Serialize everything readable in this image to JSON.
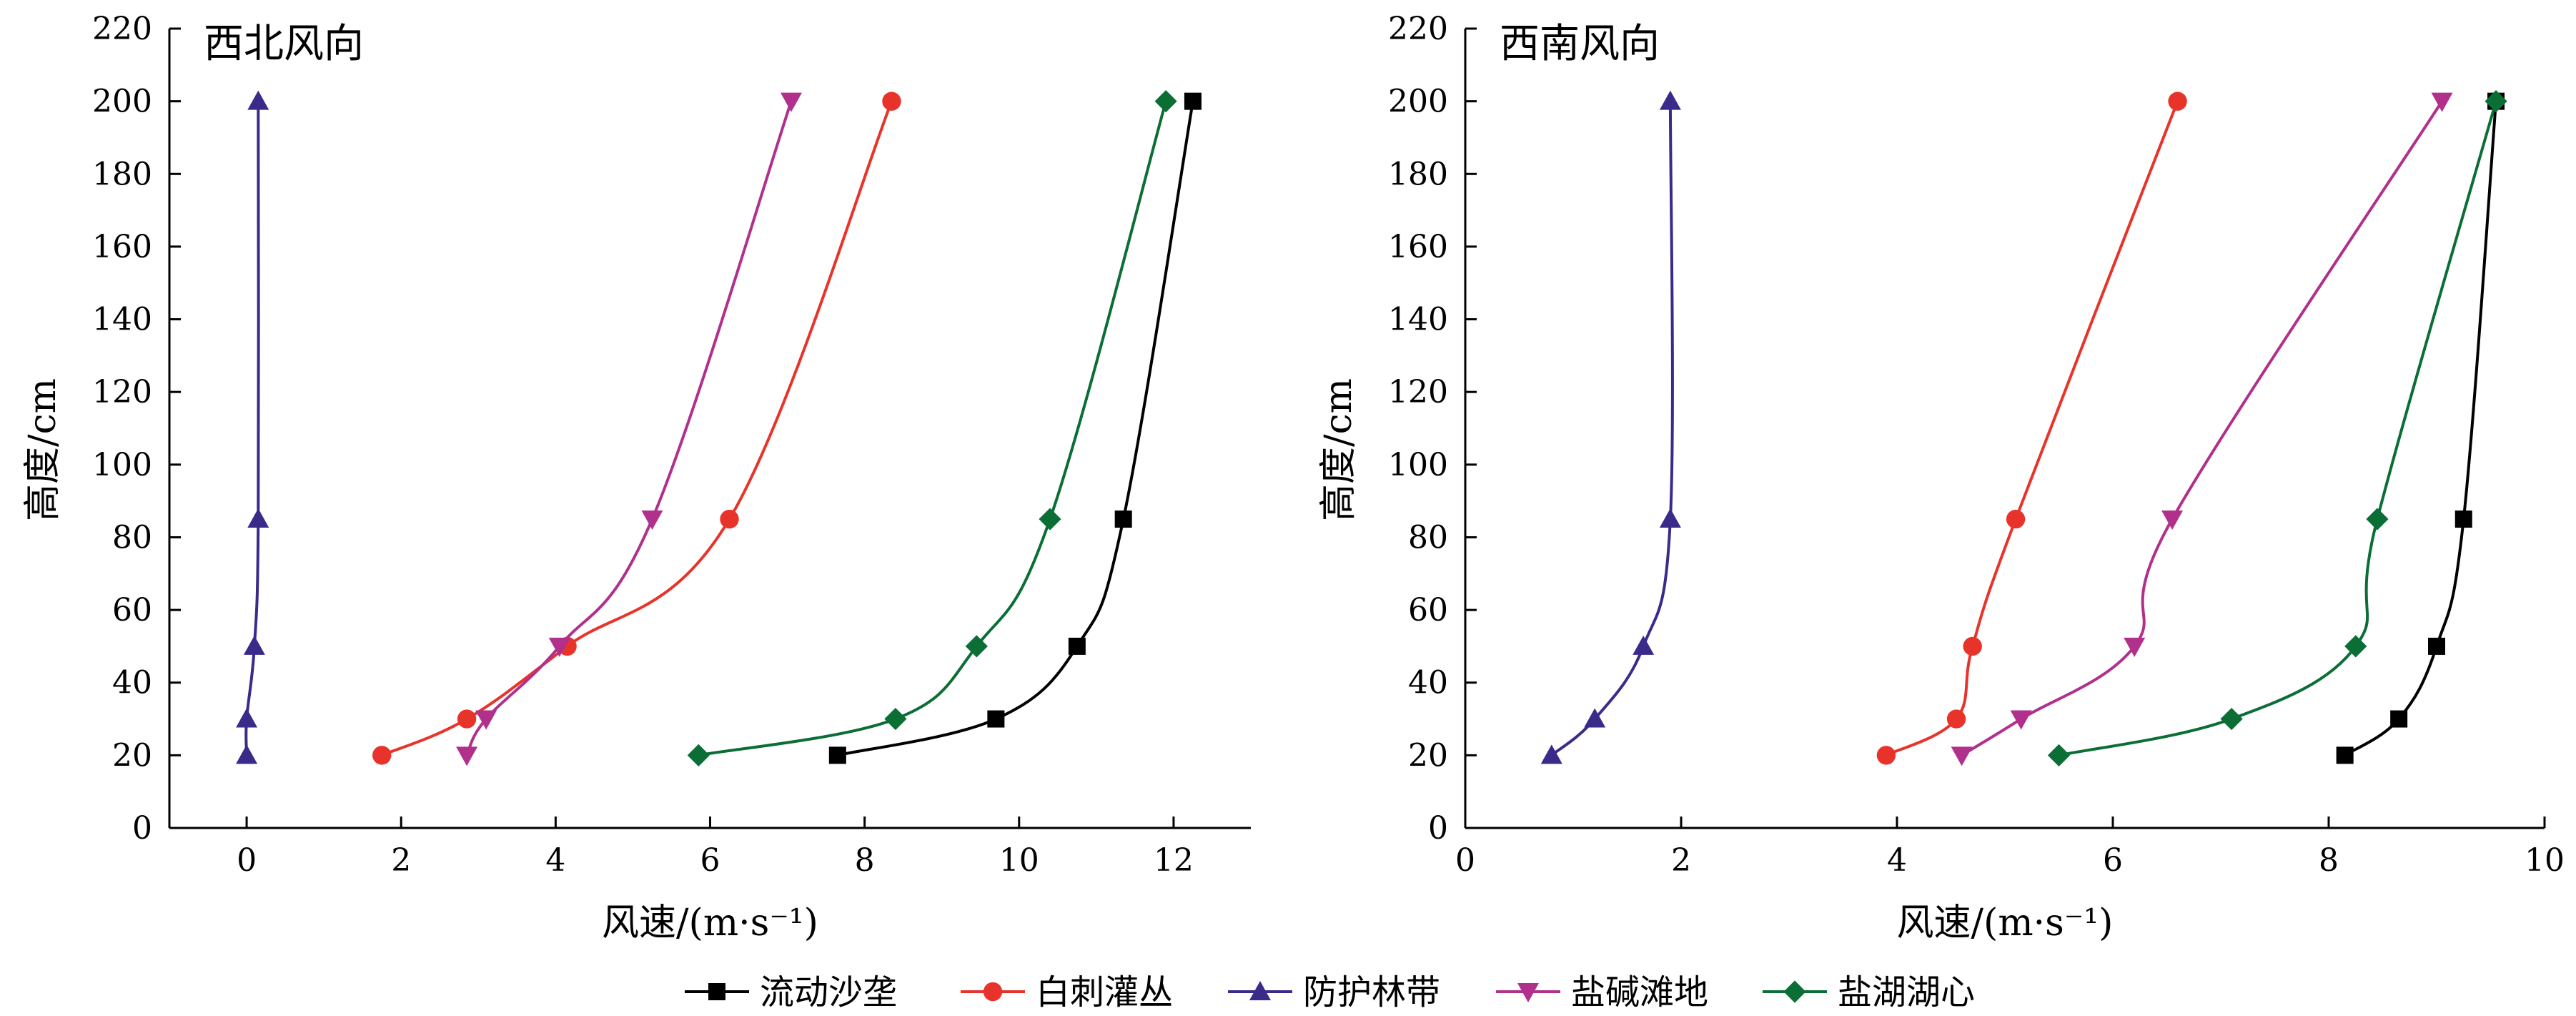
{
  "chart_data": [
    {
      "type": "line",
      "title": "西北风向",
      "xlabel": "风速/(m·s⁻¹)",
      "ylabel": "高度/cm",
      "xlim": [
        -1,
        13
      ],
      "ylim": [
        0,
        220
      ],
      "xticks": [
        0,
        2,
        4,
        6,
        8,
        10,
        12
      ],
      "yticks": [
        0,
        20,
        40,
        60,
        80,
        100,
        120,
        140,
        160,
        180,
        200,
        220
      ],
      "grid": false,
      "series": [
        {
          "name": "流动沙垄",
          "color": "#000000",
          "marker": "square",
          "points": [
            [
              7.65,
              20
            ],
            [
              9.7,
              30
            ],
            [
              10.75,
              50
            ],
            [
              11.35,
              85
            ],
            [
              12.25,
              200
            ]
          ]
        },
        {
          "name": "白刺灌丛",
          "color": "#e8332a",
          "marker": "circle",
          "points": [
            [
              1.75,
              20
            ],
            [
              2.85,
              30
            ],
            [
              4.15,
              50
            ],
            [
              6.25,
              85
            ],
            [
              8.35,
              200
            ]
          ]
        },
        {
          "name": "防护林带",
          "color": "#3a2a8a",
          "marker": "triangle-up",
          "points": [
            [
              0.0,
              20
            ],
            [
              0.0,
              30
            ],
            [
              0.1,
              50
            ],
            [
              0.15,
              85
            ],
            [
              0.15,
              200
            ]
          ]
        },
        {
          "name": "盐碱滩地",
          "color": "#b0308c",
          "marker": "triangle-down",
          "points": [
            [
              2.85,
              20
            ],
            [
              3.1,
              30
            ],
            [
              4.05,
              50
            ],
            [
              5.25,
              85
            ],
            [
              7.05,
              200
            ]
          ]
        },
        {
          "name": "盐湖湖心",
          "color": "#0a6e35",
          "marker": "diamond",
          "points": [
            [
              5.85,
              20
            ],
            [
              8.4,
              30
            ],
            [
              9.45,
              50
            ],
            [
              10.4,
              85
            ],
            [
              11.9,
              200
            ]
          ]
        }
      ]
    },
    {
      "type": "line",
      "title": "西南风向",
      "xlabel": "风速/(m·s⁻¹)",
      "ylabel": "高度/cm",
      "xlim": [
        0,
        10
      ],
      "ylim": [
        0,
        220
      ],
      "xticks": [
        0,
        2,
        4,
        6,
        8,
        10
      ],
      "yticks": [
        0,
        20,
        40,
        60,
        80,
        100,
        120,
        140,
        160,
        180,
        200,
        220
      ],
      "grid": false,
      "series": [
        {
          "name": "流动沙垄",
          "color": "#000000",
          "marker": "square",
          "points": [
            [
              8.15,
              20
            ],
            [
              8.65,
              30
            ],
            [
              9.0,
              50
            ],
            [
              9.25,
              85
            ],
            [
              9.55,
              200
            ]
          ]
        },
        {
          "name": "白刺灌丛",
          "color": "#e8332a",
          "marker": "circle",
          "points": [
            [
              3.9,
              20
            ],
            [
              4.55,
              30
            ],
            [
              4.7,
              50
            ],
            [
              5.1,
              85
            ],
            [
              6.6,
              200
            ]
          ]
        },
        {
          "name": "防护林带",
          "color": "#3a2a8a",
          "marker": "triangle-up",
          "points": [
            [
              0.8,
              20
            ],
            [
              1.2,
              30
            ],
            [
              1.65,
              50
            ],
            [
              1.9,
              85
            ],
            [
              1.9,
              200
            ]
          ]
        },
        {
          "name": "盐碱滩地",
          "color": "#b0308c",
          "marker": "triangle-down",
          "points": [
            [
              4.6,
              20
            ],
            [
              5.15,
              30
            ],
            [
              6.2,
              50
            ],
            [
              6.55,
              85
            ],
            [
              9.05,
              200
            ]
          ]
        },
        {
          "name": "盐湖湖心",
          "color": "#0a6e35",
          "marker": "diamond",
          "points": [
            [
              5.5,
              20
            ],
            [
              7.1,
              30
            ],
            [
              8.25,
              50
            ],
            [
              8.45,
              85
            ],
            [
              9.55,
              200
            ]
          ]
        }
      ]
    }
  ],
  "legend": {
    "placement": "bottom-center",
    "items": [
      {
        "label": "流动沙垄",
        "color": "#000000",
        "marker": "square"
      },
      {
        "label": "白刺灌丛",
        "color": "#e8332a",
        "marker": "circle"
      },
      {
        "label": "防护林带",
        "color": "#3a2a8a",
        "marker": "triangle-up"
      },
      {
        "label": "盐碱滩地",
        "color": "#b0308c",
        "marker": "triangle-down"
      },
      {
        "label": "盐湖湖心",
        "color": "#0a6e35",
        "marker": "diamond"
      }
    ]
  }
}
